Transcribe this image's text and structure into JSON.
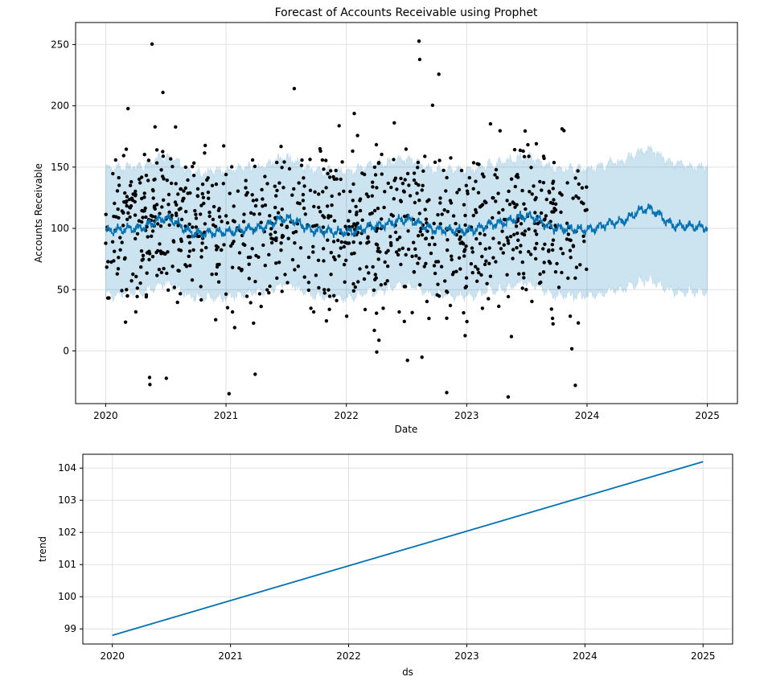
{
  "chart_data": [
    {
      "type": "line",
      "title": "Forecast of Accounts Receivable using Prophet",
      "xlabel": "Date",
      "ylabel": "Accounts Receivable",
      "x_ticks": [
        "2020",
        "2021",
        "2022",
        "2023",
        "2024",
        "2025"
      ],
      "y_ticks": [
        "0",
        "50",
        "100",
        "150",
        "200",
        "250"
      ],
      "xlim": [
        2019.75,
        2025.25
      ],
      "ylim": [
        -43,
        268
      ],
      "grid": true,
      "legend": "none",
      "history_end": 2024.0,
      "colors": {
        "forecast": "#0072B2",
        "interval": "#0072B2",
        "observed": "#000000"
      },
      "series": [
        {
          "x": [
            2020.0,
            2020.25,
            2020.5,
            2020.75,
            2021.0,
            2021.25,
            2021.5,
            2021.75,
            2022.0,
            2022.25,
            2022.5,
            2022.75,
            2023.0,
            2023.25,
            2023.5,
            2023.75,
            2024.0,
            2024.25,
            2024.5,
            2024.75,
            2025.0
          ],
          "yhat": [
            98,
            100,
            108,
            96,
            97,
            100,
            108,
            98,
            97,
            102,
            107,
            99,
            98,
            104,
            110,
            100,
            99,
            105,
            116,
            102,
            101
          ],
          "yhat_lower": [
            45,
            48,
            55,
            44,
            44,
            48,
            55,
            45,
            44,
            49,
            54,
            46,
            45,
            50,
            56,
            46,
            45,
            50,
            58,
            48,
            48
          ],
          "yhat_upper": [
            148,
            150,
            158,
            145,
            147,
            150,
            157,
            147,
            146,
            152,
            156,
            148,
            147,
            153,
            158,
            149,
            148,
            154,
            164,
            152,
            150
          ]
        }
      ]
    },
    {
      "type": "line",
      "title": "",
      "xlabel": "ds",
      "ylabel": "trend",
      "x_ticks": [
        "2020",
        "2021",
        "2022",
        "2023",
        "2024",
        "2025"
      ],
      "y_ticks": [
        "99",
        "100",
        "101",
        "102",
        "103",
        "104"
      ],
      "xlim": [
        2019.75,
        2025.25
      ],
      "ylim": [
        98.53,
        104.43
      ],
      "grid": true,
      "legend": "none",
      "colors": {
        "trend": "#0072B2"
      },
      "series": [
        {
          "x": [
            2020.0,
            2025.0
          ],
          "y": [
            98.8,
            104.2
          ]
        }
      ]
    }
  ]
}
